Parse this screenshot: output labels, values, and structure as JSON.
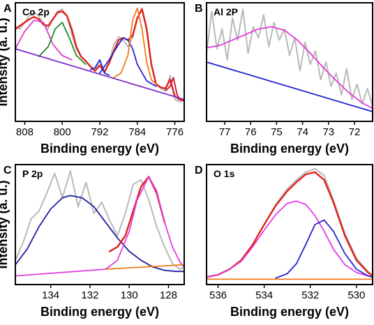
{
  "chart_data": [
    {
      "panel": "A",
      "title": "Co 2p",
      "type": "line",
      "xlabel": "Binding energy (eV)",
      "ylabel": "Intensity (a. u.)",
      "xlim": [
        810,
        774
      ],
      "xticks": [
        808,
        800,
        792,
        784,
        776
      ],
      "ylim": [
        0,
        1
      ],
      "series": [
        {
          "role": "raw",
          "color": "#b9b9b9",
          "x": [
            810,
            809,
            808,
            807,
            806,
            805,
            804,
            803,
            802,
            801,
            800,
            799,
            798,
            797,
            796,
            795,
            794,
            793,
            792,
            791,
            790,
            789,
            788,
            787,
            786,
            785,
            784,
            783,
            782,
            781,
            780,
            779,
            778,
            777,
            776,
            775,
            774
          ],
          "y": [
            0.82,
            0.8,
            0.86,
            0.92,
            0.95,
            0.92,
            0.84,
            0.8,
            0.89,
            0.96,
            0.98,
            0.92,
            0.76,
            0.62,
            0.55,
            0.51,
            0.46,
            0.43,
            0.52,
            0.4,
            0.5,
            0.66,
            0.73,
            0.7,
            0.64,
            0.72,
            0.9,
            0.99,
            0.82,
            0.48,
            0.3,
            0.26,
            0.24,
            0.38,
            0.16,
            0.14,
            0.15
          ]
        },
        {
          "role": "envelope",
          "color": "#e0201b",
          "x": [
            810,
            809,
            808,
            807,
            806,
            805,
            804,
            803,
            802,
            801,
            800,
            799,
            798,
            797,
            796,
            795,
            794,
            793,
            792,
            791,
            790,
            789,
            788,
            787,
            786,
            785,
            784,
            783,
            782,
            781,
            780,
            779,
            778,
            777,
            776,
            775,
            774
          ],
          "y": [
            0.8,
            0.83,
            0.86,
            0.89,
            0.91,
            0.89,
            0.84,
            0.83,
            0.89,
            0.95,
            0.96,
            0.92,
            0.8,
            0.64,
            0.55,
            0.51,
            0.46,
            0.42,
            0.47,
            0.41,
            0.49,
            0.6,
            0.7,
            0.72,
            0.7,
            0.74,
            0.9,
            0.98,
            0.8,
            0.48,
            0.3,
            0.27,
            0.26,
            0.34,
            0.19,
            0.16,
            0.15
          ]
        },
        {
          "role": "peak",
          "color": "#e23ac6",
          "x": [
            810,
            808,
            806,
            804,
            802,
            800,
            798
          ],
          "y": [
            0.62,
            0.78,
            0.88,
            0.86,
            0.66,
            0.56,
            0.52
          ]
        },
        {
          "role": "peak",
          "color": "#1e8a1e",
          "x": [
            805,
            803,
            801.5,
            800,
            798.5,
            797,
            795
          ],
          "y": [
            0.55,
            0.64,
            0.8,
            0.86,
            0.72,
            0.56,
            0.48
          ]
        },
        {
          "role": "peak",
          "color": "#2323cf",
          "x": [
            794,
            793,
            792,
            791,
            790
          ],
          "y": [
            0.43,
            0.45,
            0.52,
            0.4,
            0.38
          ]
        },
        {
          "role": "peak",
          "color": "#2323cf",
          "x": [
            792,
            790,
            788,
            787,
            786,
            785,
            784,
            782,
            780
          ],
          "y": [
            0.4,
            0.52,
            0.66,
            0.72,
            0.7,
            0.62,
            0.48,
            0.33,
            0.28
          ]
        },
        {
          "role": "peak",
          "color": "#f07a16",
          "x": [
            789,
            787.5,
            786,
            785,
            784,
            783,
            782,
            781,
            780
          ],
          "y": [
            0.36,
            0.4,
            0.56,
            0.88,
            0.99,
            0.8,
            0.5,
            0.34,
            0.3
          ]
        },
        {
          "role": "peak",
          "color": "#c8102e",
          "x": [
            778,
            777,
            776.3,
            775.5,
            775
          ],
          "y": [
            0.24,
            0.28,
            0.36,
            0.2,
            0.17
          ]
        },
        {
          "role": "background",
          "color": "#7f2fcf",
          "x": [
            810,
            774
          ],
          "y": [
            0.62,
            0.16
          ]
        }
      ]
    },
    {
      "panel": "B",
      "title": "Al 2P",
      "type": "line",
      "xlabel": "Binding energy (eV)",
      "xlim": [
        77.7,
        71.3
      ],
      "xticks": [
        77,
        76,
        75,
        74,
        73,
        72
      ],
      "ylim": [
        0,
        1
      ],
      "series": [
        {
          "role": "raw",
          "color": "#b9b9b9",
          "x": [
            77.7,
            77.5,
            77.3,
            77.1,
            76.9,
            76.7,
            76.5,
            76.3,
            76.1,
            75.9,
            75.7,
            75.5,
            75.3,
            75.1,
            74.9,
            74.7,
            74.5,
            74.3,
            74.1,
            73.9,
            73.7,
            73.5,
            73.3,
            73.1,
            72.9,
            72.7,
            72.5,
            72.3,
            72.1,
            71.9,
            71.7,
            71.5,
            71.3
          ],
          "y": [
            0.58,
            0.96,
            0.62,
            0.8,
            0.52,
            0.9,
            0.7,
            0.98,
            0.58,
            0.82,
            0.72,
            0.93,
            0.64,
            0.86,
            0.7,
            0.8,
            0.56,
            0.72,
            0.42,
            0.68,
            0.48,
            0.6,
            0.34,
            0.5,
            0.28,
            0.4,
            0.2,
            0.44,
            0.16,
            0.3,
            0.12,
            0.26,
            0.1
          ]
        },
        {
          "role": "peak",
          "color": "#e23ae0",
          "x": [
            77.7,
            77.2,
            76.7,
            76.2,
            75.7,
            75.2,
            74.7,
            74.2,
            73.7,
            73.2,
            72.7,
            72.2,
            71.7,
            71.3
          ],
          "y": [
            0.63,
            0.65,
            0.7,
            0.75,
            0.8,
            0.82,
            0.79,
            0.7,
            0.58,
            0.45,
            0.33,
            0.22,
            0.13,
            0.08
          ]
        },
        {
          "role": "background",
          "color": "#2323cf",
          "x": [
            77.7,
            71.3
          ],
          "y": [
            0.5,
            0.05
          ]
        }
      ]
    },
    {
      "panel": "C",
      "title": "P 2p",
      "type": "line",
      "xlabel": "Binding energy (eV)",
      "ylabel": "Intensity (a. u.)",
      "xlim": [
        135.8,
        127.2
      ],
      "xticks": [
        134,
        132,
        130,
        128
      ],
      "ylim": [
        0,
        1
      ],
      "series": [
        {
          "role": "raw",
          "color": "#b9b9b9",
          "x": [
            135.8,
            135.4,
            135.0,
            134.6,
            134.2,
            133.8,
            133.4,
            133.0,
            132.6,
            132.2,
            131.8,
            131.4,
            131.0,
            130.6,
            130.2,
            129.8,
            129.4,
            129.0,
            128.6,
            128.2,
            127.8,
            127.4,
            127.2
          ],
          "y": [
            0.18,
            0.34,
            0.55,
            0.62,
            0.78,
            0.96,
            0.74,
            0.98,
            0.66,
            0.88,
            0.6,
            0.7,
            0.54,
            0.4,
            0.6,
            0.86,
            0.9,
            0.72,
            0.48,
            0.3,
            0.15,
            0.1,
            0.12
          ]
        },
        {
          "role": "peak",
          "color": "#1c1fa0",
          "x": [
            135.8,
            135.2,
            134.6,
            134.0,
            133.4,
            133.0,
            132.4,
            131.8,
            131.2,
            130.6,
            130.0,
            129.4,
            128.8,
            128.2,
            127.6,
            127.2
          ],
          "y": [
            0.14,
            0.28,
            0.48,
            0.64,
            0.74,
            0.76,
            0.74,
            0.66,
            0.52,
            0.38,
            0.26,
            0.18,
            0.12,
            0.09,
            0.08,
            0.08
          ]
        },
        {
          "role": "envelope",
          "color": "#e0201b",
          "x": [
            131.0,
            130.6,
            130.2,
            129.8,
            129.4,
            129.0,
            128.6,
            128.2
          ],
          "y": [
            0.26,
            0.3,
            0.4,
            0.62,
            0.84,
            0.93,
            0.78,
            0.52
          ]
        },
        {
          "role": "peak",
          "color": "#e23ae0",
          "x": [
            131.2,
            130.6,
            130.0,
            129.6,
            129.0,
            128.6,
            128.2,
            127.8,
            127.4,
            127.2
          ],
          "y": [
            0.1,
            0.18,
            0.44,
            0.72,
            0.93,
            0.8,
            0.52,
            0.3,
            0.16,
            0.12
          ]
        },
        {
          "role": "background",
          "color": "#e23ae0",
          "x": [
            135.8,
            131.2
          ],
          "y": [
            0.04,
            0.1
          ]
        },
        {
          "role": "background",
          "color": "#f07a16",
          "x": [
            131.2,
            127.2
          ],
          "y": [
            0.1,
            0.14
          ]
        }
      ]
    },
    {
      "panel": "D",
      "title": "O 1s",
      "type": "line",
      "xlabel": "Binding energy (eV)",
      "xlim": [
        536.5,
        529.3
      ],
      "xticks": [
        536,
        534,
        532,
        530
      ],
      "ylim": [
        0,
        1
      ],
      "series": [
        {
          "role": "raw",
          "color": "#b9b9b9",
          "x": [
            536.5,
            536.0,
            535.5,
            535.0,
            534.5,
            534.0,
            533.5,
            533.0,
            532.6,
            532.2,
            531.8,
            531.4,
            531.0,
            530.5,
            530.0,
            529.5,
            529.3
          ],
          "y": [
            0.03,
            0.05,
            0.1,
            0.18,
            0.32,
            0.5,
            0.68,
            0.82,
            0.9,
            0.97,
            1.0,
            0.94,
            0.72,
            0.42,
            0.2,
            0.08,
            0.04
          ]
        },
        {
          "role": "envelope",
          "color": "#e0201b",
          "x": [
            536.5,
            536.0,
            535.5,
            535.0,
            534.5,
            534.0,
            533.5,
            533.0,
            532.6,
            532.2,
            531.8,
            531.4,
            531.0,
            530.5,
            530.0,
            529.5,
            529.3
          ],
          "y": [
            0.03,
            0.05,
            0.1,
            0.18,
            0.32,
            0.5,
            0.67,
            0.8,
            0.88,
            0.95,
            0.97,
            0.9,
            0.7,
            0.4,
            0.18,
            0.07,
            0.04
          ]
        },
        {
          "role": "peak",
          "color": "#e23ae0",
          "x": [
            536.5,
            536.0,
            535.5,
            535.0,
            534.5,
            534.0,
            533.5,
            533.0,
            532.6,
            532.2,
            531.8,
            531.4,
            531.0,
            530.5,
            530.0,
            529.5,
            529.3
          ],
          "y": [
            0.03,
            0.05,
            0.1,
            0.17,
            0.3,
            0.45,
            0.59,
            0.69,
            0.71,
            0.68,
            0.58,
            0.44,
            0.28,
            0.14,
            0.07,
            0.04,
            0.03
          ]
        },
        {
          "role": "peak",
          "color": "#2323cf",
          "x": [
            533.5,
            533.0,
            532.6,
            532.2,
            531.8,
            531.4,
            531.0,
            530.5,
            530.0,
            529.5,
            529.3
          ],
          "y": [
            0.02,
            0.06,
            0.15,
            0.32,
            0.5,
            0.54,
            0.44,
            0.24,
            0.1,
            0.04,
            0.03
          ]
        },
        {
          "role": "background",
          "color": "#f07a16",
          "x": [
            536.5,
            529.3
          ],
          "y": [
            0.01,
            0.01
          ]
        }
      ]
    }
  ]
}
